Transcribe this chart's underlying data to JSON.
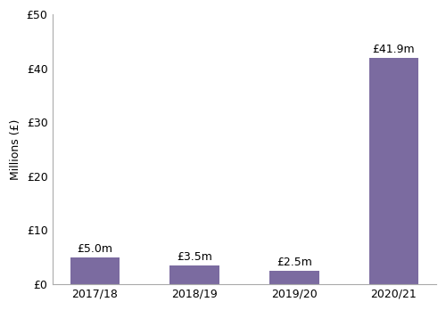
{
  "categories": [
    "2017/18",
    "2018/19",
    "2019/20",
    "2020/21"
  ],
  "values": [
    5.0,
    3.5,
    2.5,
    41.9
  ],
  "bar_labels": [
    "£5.0m",
    "£3.5m",
    "£2.5m",
    "£41.9m"
  ],
  "bar_color": "#7b6ba0",
  "ylim": [
    0,
    50
  ],
  "yticks": [
    0,
    10,
    20,
    30,
    40,
    50
  ],
  "ytick_labels": [
    "£0",
    "£10",
    "£20",
    "£30",
    "£40",
    "£50"
  ],
  "ylabel": "Millions (£)",
  "background_color": "#ffffff",
  "spine_color": "#aaaaaa",
  "label_fontsize": 9,
  "axis_fontsize": 9,
  "ylabel_fontsize": 9
}
